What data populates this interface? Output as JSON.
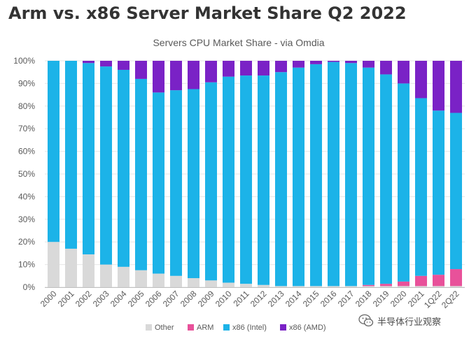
{
  "headline": "Arm vs. x86 Server Market Share Q2 2022",
  "watermark": {
    "label": "半导体行业观察",
    "icon": "wechat-icon"
  },
  "chart_data": {
    "type": "bar",
    "stacked": true,
    "title": "Servers CPU Market Share - via Omdia",
    "xlabel": "",
    "ylabel": "",
    "ylim": [
      0,
      100
    ],
    "yticks": [
      0,
      10,
      20,
      30,
      40,
      50,
      60,
      70,
      80,
      90,
      100
    ],
    "ytick_format": "{v}%",
    "grid": true,
    "legend_position": "bottom",
    "categories": [
      "2000",
      "2001",
      "2002",
      "2003",
      "2004",
      "2005",
      "2006",
      "2007",
      "2008",
      "2009",
      "2010",
      "2011",
      "2012",
      "2013",
      "2014",
      "2015",
      "2016",
      "2017",
      "2018",
      "2019",
      "2020",
      "2021",
      "1Q22",
      "2Q22"
    ],
    "series": [
      {
        "name": "Other",
        "color": "#d9d9d9",
        "values": [
          20,
          17,
          14.5,
          10,
          9,
          7.5,
          6,
          5,
          4,
          3,
          2,
          1.5,
          1,
          0.5,
          0.5,
          0.5,
          0.5,
          0.5,
          0.5,
          0.5,
          0.5,
          0.5,
          0.5,
          0.5
        ]
      },
      {
        "name": "ARM",
        "color": "#e8519a",
        "values": [
          0,
          0,
          0,
          0,
          0,
          0,
          0,
          0,
          0,
          0,
          0,
          0,
          0,
          0,
          0,
          0,
          0,
          0,
          0.5,
          1,
          2,
          4.5,
          5,
          7.5
        ]
      },
      {
        "name": "x86 (Intel)",
        "color": "#1cb3e8",
        "values": [
          80,
          83,
          84.5,
          87.5,
          87,
          84.5,
          80,
          82,
          83.5,
          87.5,
          91,
          92,
          92.5,
          94.5,
          96.5,
          98,
          99,
          98.5,
          96,
          92.5,
          87.5,
          78.5,
          72.5,
          69
        ]
      },
      {
        "name": "x86 (AMD)",
        "color": "#7a22c6",
        "values": [
          0,
          0,
          1,
          2.5,
          4,
          8,
          14,
          13,
          12.5,
          9.5,
          7,
          6.5,
          6.5,
          5,
          3,
          1.5,
          0.5,
          1,
          3,
          6,
          10,
          16.5,
          22,
          23
        ]
      }
    ]
  }
}
